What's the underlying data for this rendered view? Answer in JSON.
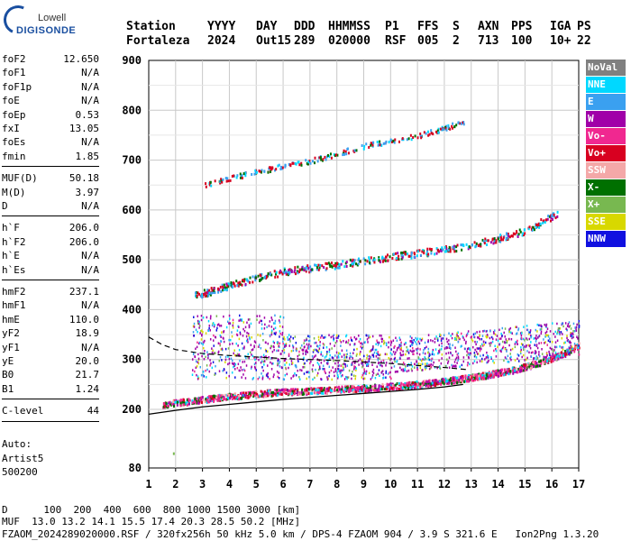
{
  "logo": {
    "line1": "Lowell",
    "line2": "DIGISONDE"
  },
  "header": {
    "labels": [
      "Station",
      "YYYY",
      "DAY",
      "DDD",
      "HHMMSS",
      "P1",
      "FFS",
      "S",
      "AXN",
      "PPS",
      "IGA",
      "PS"
    ],
    "values": [
      "Fortaleza",
      "2024",
      "Out15",
      "289",
      "020000",
      "RSF",
      "005",
      "2",
      "713",
      "100",
      "10+",
      "22"
    ]
  },
  "params": {
    "group1": [
      [
        "foF2",
        "12.650"
      ],
      [
        "foF1",
        "N/A"
      ],
      [
        "foF1p",
        "N/A"
      ],
      [
        "foE",
        "N/A"
      ],
      [
        "foEp",
        "0.53"
      ],
      [
        "fxI",
        "13.05"
      ],
      [
        "foEs",
        "N/A"
      ],
      [
        "fmin",
        "1.85"
      ]
    ],
    "group2": [
      [
        "MUF(D)",
        "50.18"
      ],
      [
        "M(D)",
        "3.97"
      ],
      [
        "D",
        "N/A"
      ]
    ],
    "group3": [
      [
        "h`F",
        "206.0"
      ],
      [
        "h`F2",
        "206.0"
      ],
      [
        "h`E",
        "N/A"
      ],
      [
        "h`Es",
        "N/A"
      ]
    ],
    "group4": [
      [
        "hmF2",
        "237.1"
      ],
      [
        "hmF1",
        "N/A"
      ],
      [
        "hmE",
        "110.0"
      ],
      [
        "yF2",
        "18.9"
      ],
      [
        "yF1",
        "N/A"
      ],
      [
        "yE",
        "20.0"
      ],
      [
        "B0",
        "21.7"
      ],
      [
        "B1",
        "1.24"
      ]
    ],
    "clevel": [
      "C-level",
      "44"
    ]
  },
  "auto": [
    "Auto:",
    "Artist5",
    "500200"
  ],
  "legend": [
    {
      "label": "NoVal",
      "color": "#808080"
    },
    {
      "label": "NNE",
      "color": "#00d8ff"
    },
    {
      "label": "E",
      "color": "#3aa0f0"
    },
    {
      "label": "W",
      "color": "#a000a8"
    },
    {
      "label": "Vo-",
      "color": "#f02890"
    },
    {
      "label": "Vo+",
      "color": "#d80020"
    },
    {
      "label": "SSW",
      "color": "#f4a8a8"
    },
    {
      "label": "X-",
      "color": "#007000"
    },
    {
      "label": "X+",
      "color": "#78b850"
    },
    {
      "label": "SSE",
      "color": "#d8d800"
    },
    {
      "label": "NNW",
      "color": "#1010e0"
    }
  ],
  "footer": {
    "dist": "D      100  200  400  600  800 1000 1500 3000 [km]",
    "muf": "MUF  13.0 13.2 14.1 15.5 17.4 20.3 28.5 50.2 [MHz]",
    "info": "FZAOM_2024289020000.RSF / 320fx256h 50 kHz 5.0 km / DPS-4 FZAOM 904 / 3.9 S 321.6 E   Ion2Png 1.3.20"
  },
  "chart_data": {
    "type": "scatter",
    "xlabel": "",
    "ylabel": "",
    "xlim": [
      1,
      17
    ],
    "xticks": [
      1,
      2,
      3,
      4,
      5,
      6,
      7,
      8,
      9,
      10,
      11,
      12,
      13,
      14,
      15,
      16,
      17
    ],
    "ylim_log_ticks": [
      80,
      200,
      300,
      400,
      500,
      600,
      700,
      800,
      900
    ],
    "ylim": [
      80,
      900
    ],
    "grid": true,
    "traces": [
      {
        "name": "o-trace",
        "x": [
          1.5,
          2.5,
          3.5,
          4.5,
          5.5,
          6.5,
          7.5,
          8.5,
          9.5,
          10.5,
          11.5,
          12.5,
          13.5,
          14.5,
          15.5,
          16.5,
          17.0
        ],
        "y": [
          212,
          218,
          225,
          230,
          235,
          238,
          240,
          243,
          246,
          250,
          255,
          262,
          270,
          280,
          295,
          315,
          330
        ]
      },
      {
        "name": "2nd-hop",
        "x": [
          2.7,
          4,
          5,
          6,
          7,
          8,
          9,
          10,
          11,
          12,
          13,
          14,
          15,
          16.2
        ],
        "y": [
          430,
          450,
          465,
          478,
          485,
          492,
          500,
          508,
          515,
          522,
          532,
          545,
          560,
          595
        ]
      },
      {
        "name": "3rd-hop",
        "x": [
          3,
          4,
          5,
          6,
          7,
          8,
          9,
          10,
          11,
          12.8
        ],
        "y": [
          650,
          665,
          678,
          690,
          700,
          715,
          730,
          740,
          750,
          780
        ]
      }
    ],
    "profile_curve": {
      "x": [
        1.0,
        2,
        3,
        4,
        5,
        6,
        7,
        8,
        9,
        10,
        11,
        12,
        12.7
      ],
      "y": [
        190,
        198,
        205,
        210,
        215,
        220,
        224,
        228,
        232,
        236,
        240,
        245,
        250
      ]
    },
    "dashed_curve": {
      "x": [
        1.0,
        1.5,
        2,
        3,
        4,
        5,
        6,
        7,
        8,
        9,
        10,
        11,
        12,
        12.8
      ],
      "y": [
        345,
        330,
        320,
        312,
        308,
        305,
        302,
        300,
        298,
        295,
        292,
        288,
        284,
        280
      ]
    },
    "extra_points": [
      {
        "x": 1.9,
        "y": 112
      }
    ]
  }
}
